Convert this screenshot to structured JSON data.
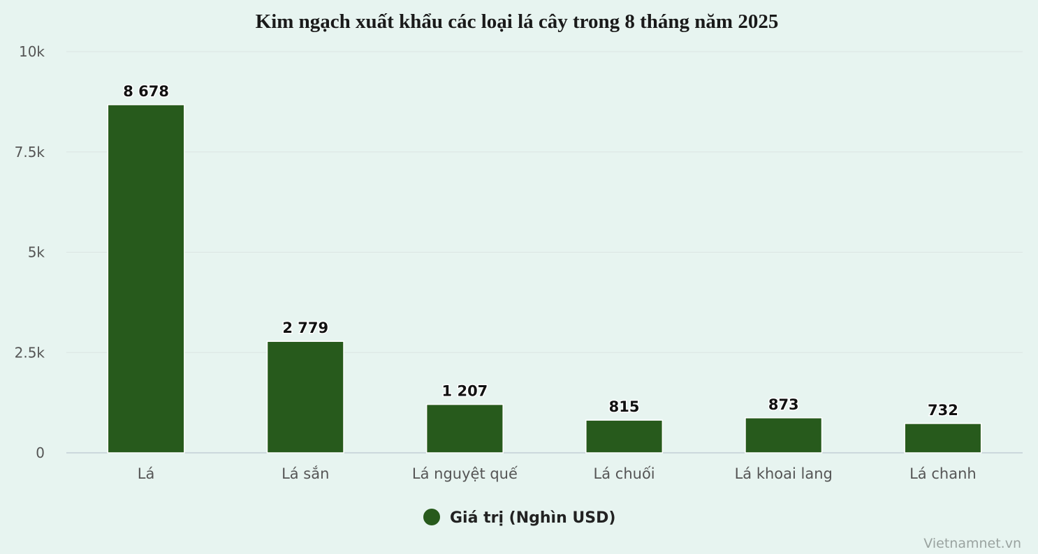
{
  "chart_data": {
    "type": "bar",
    "title": "Kim ngạch xuất khẩu các loại lá cây trong 8 tháng năm 2025",
    "categories": [
      "Lá",
      "Lá sắn",
      "Lá nguyệt quế",
      "Lá chuối",
      "Lá khoai lang",
      "Lá chanh"
    ],
    "series": [
      {
        "name": "Giá trị (Nghìn USD)",
        "values": [
          8678,
          2779,
          1207,
          815,
          873,
          732
        ],
        "labels": [
          "8 678",
          "2 779",
          "1 207",
          "815",
          "873",
          "732"
        ],
        "color": "#275a1c"
      }
    ],
    "yticks": [
      0,
      2500,
      5000,
      7500,
      10000
    ],
    "ytick_labels": [
      "0",
      "2.5k",
      "5k",
      "7.5k",
      "10k"
    ],
    "ylim": [
      0,
      10000
    ],
    "grid": true,
    "legend_position": "bottom-center",
    "credit": "Vietnamnet.vn"
  }
}
